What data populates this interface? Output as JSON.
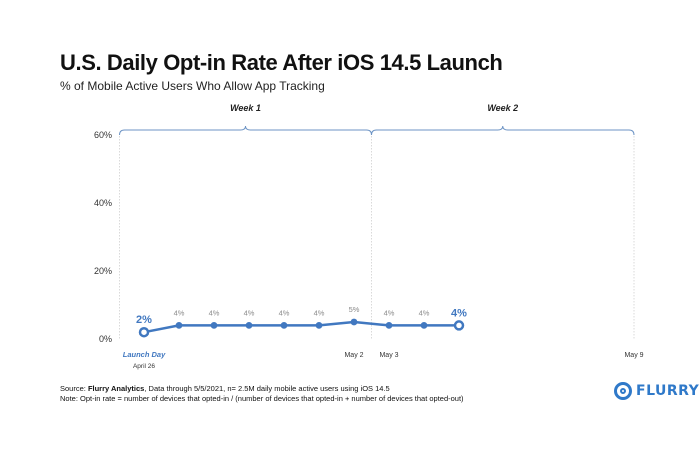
{
  "header": {
    "title": "U.S. Daily Opt-in Rate After iOS 14.5 Launch",
    "subtitle": "% of Mobile Active Users Who Allow App Tracking"
  },
  "footer": {
    "source_label": "Source: ",
    "source_name": "Flurry Analytics",
    "source_rest": ", Data through 5/5/2021, n= 2.5M daily mobile active users using iOS 14.5",
    "note": "Note: Opt-in rate = number of devices that opted-in / (number of devices that opted-in + number of devices that opted-out)"
  },
  "logo": {
    "text": "FLURRY",
    "icon": "flurry-logo-icon"
  },
  "colors": {
    "series": "#4178c0",
    "bracket": "#6c93c4",
    "grid": "#d0d0d0",
    "label": "#8a8a8a"
  },
  "chart_data": {
    "type": "line",
    "title": "U.S. Daily Opt-in Rate After iOS 14.5 Launch",
    "subtitle": "% of Mobile Active Users Who Allow App Tracking",
    "ylim": [
      0,
      60
    ],
    "y_ticks": [
      "0%",
      "20%",
      "40%",
      "60%"
    ],
    "y_tick_values": [
      0,
      20,
      40,
      60
    ],
    "x_range": [
      0,
      14
    ],
    "x": [
      0,
      1,
      2,
      3,
      4,
      5,
      6,
      7,
      8,
      9
    ],
    "values": [
      2,
      4,
      4,
      4,
      4,
      4,
      5,
      4,
      4,
      4
    ],
    "data_labels": [
      "2%",
      "4%",
      "4%",
      "4%",
      "4%",
      "4%",
      "5%",
      "4%",
      "4%",
      "4%"
    ],
    "emphasized_labels": [
      0,
      9
    ],
    "x_annotations": [
      {
        "x": 0,
        "text": "Launch Day",
        "style": "launch"
      },
      {
        "x": 0,
        "text": "April 26",
        "style": "date-small"
      },
      {
        "x": 6,
        "text": "May 2",
        "style": "date"
      },
      {
        "x": 7,
        "text": "May 3",
        "style": "date"
      },
      {
        "x": 14,
        "text": "May 9",
        "style": "date"
      }
    ],
    "periods": [
      {
        "label": "Week 1",
        "from": -0.7,
        "to": 6.5
      },
      {
        "label": "Week 2",
        "from": 6.5,
        "to": 14
      }
    ]
  }
}
